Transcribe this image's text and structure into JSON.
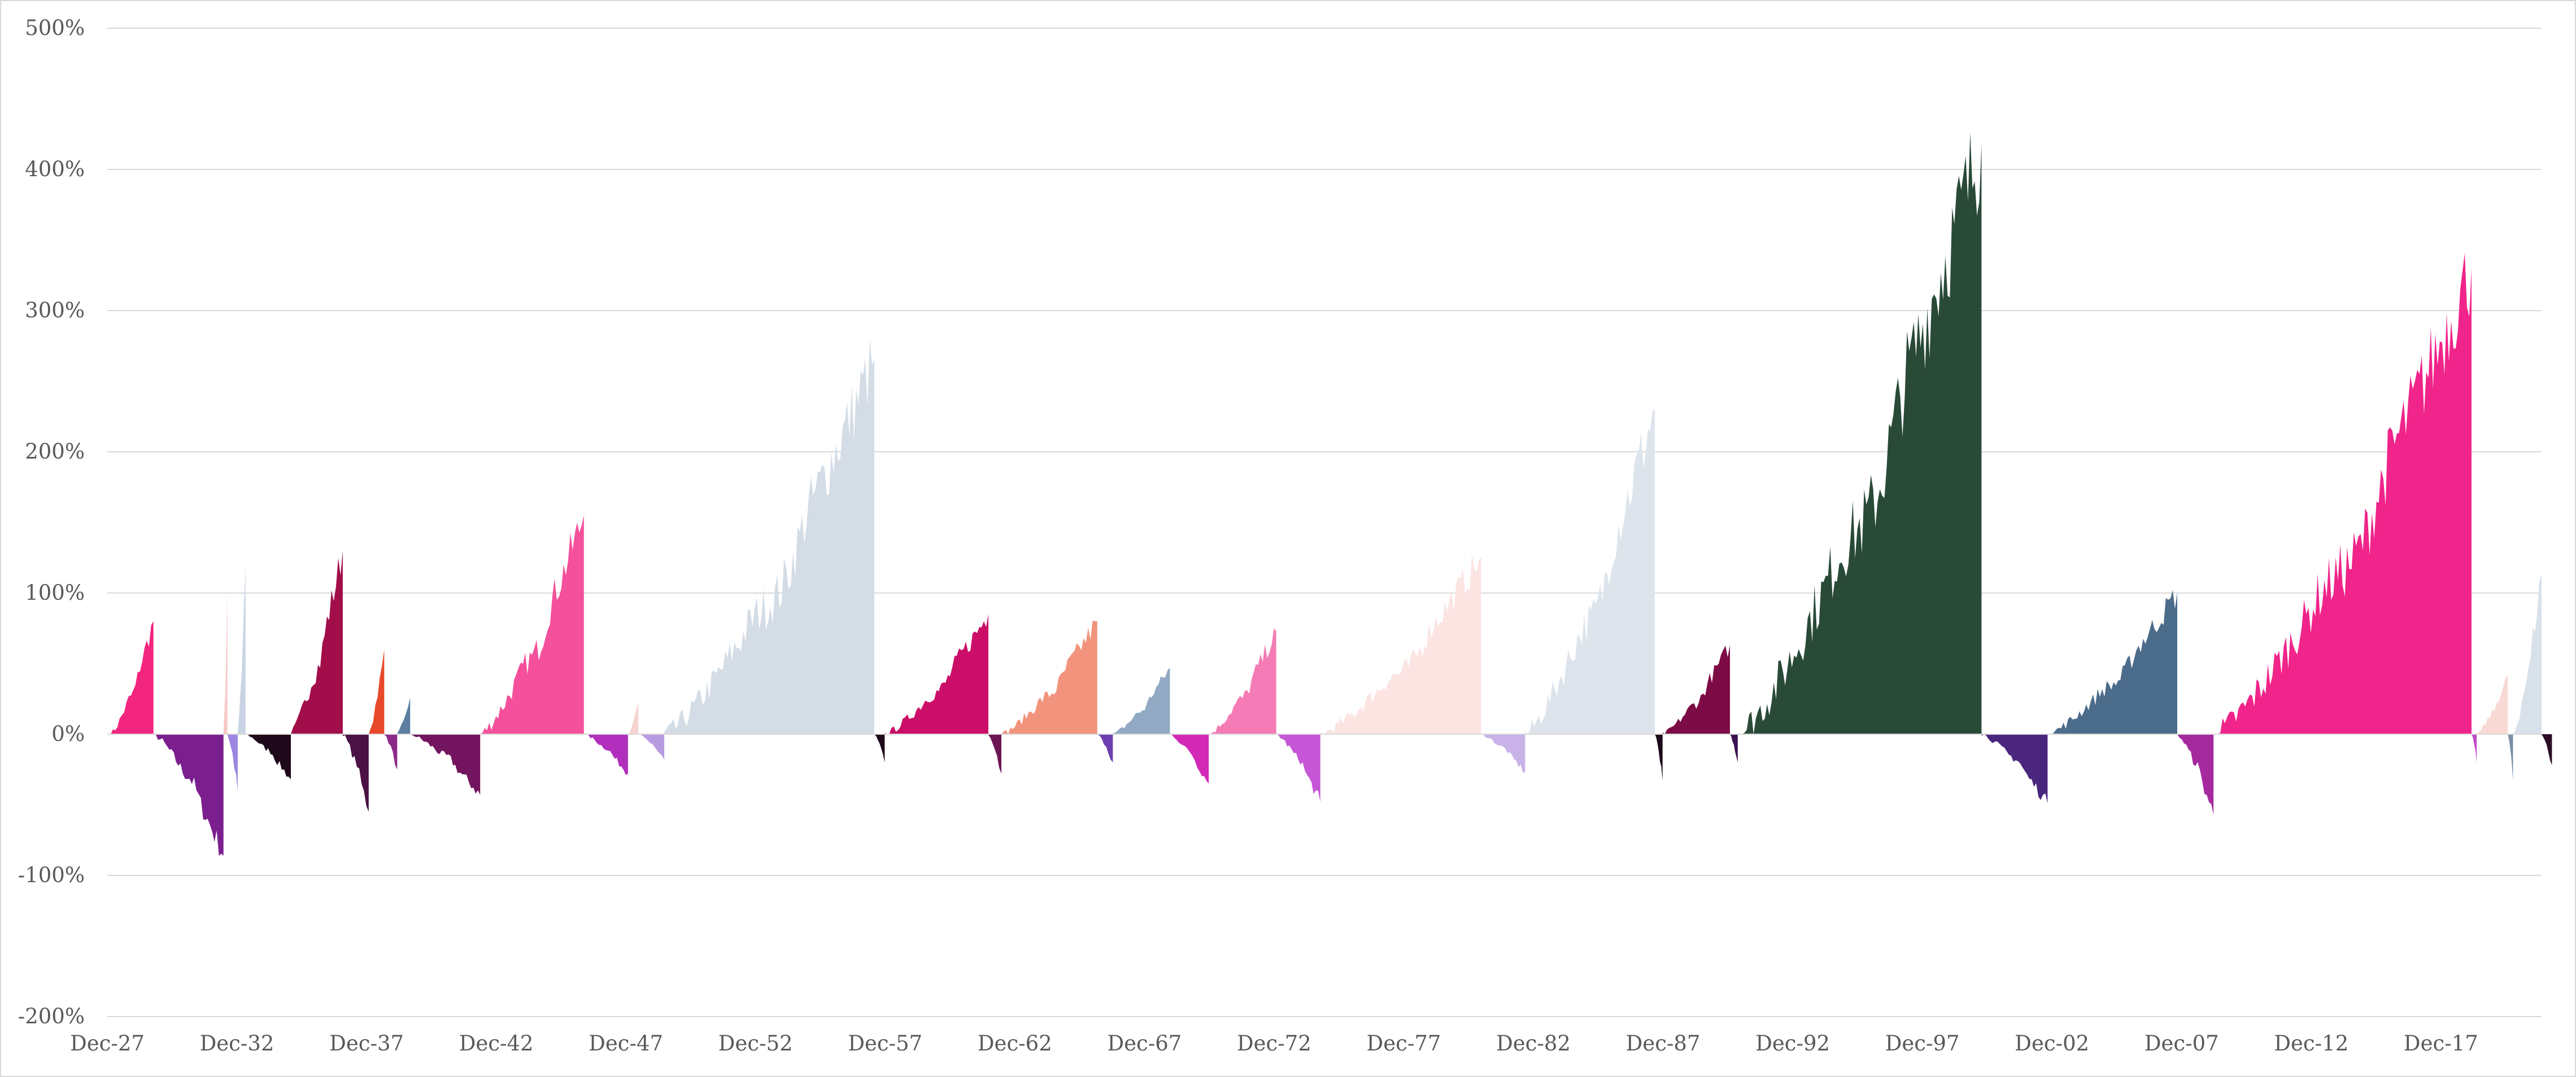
{
  "chart_data": {
    "type": "area",
    "title": "",
    "xlabel": "",
    "ylabel": "",
    "ylim": [
      -200,
      500
    ],
    "y_ticks": [
      {
        "value": 500,
        "label": "500%"
      },
      {
        "value": 400,
        "label": "400%"
      },
      {
        "value": 300,
        "label": "300%"
      },
      {
        "value": 200,
        "label": "200%"
      },
      {
        "value": 100,
        "label": "100%"
      },
      {
        "value": 0,
        "label": "0%"
      },
      {
        "value": -100,
        "label": "-100%"
      },
      {
        "value": -200,
        "label": "-200%"
      }
    ],
    "x_range": [
      1927.9,
      2021.8
    ],
    "x_ticks": [
      {
        "value": 1927.92,
        "label": "Dec-27"
      },
      {
        "value": 1932.92,
        "label": "Dec-32"
      },
      {
        "value": 1937.92,
        "label": "Dec-37"
      },
      {
        "value": 1942.92,
        "label": "Dec-42"
      },
      {
        "value": 1947.92,
        "label": "Dec-47"
      },
      {
        "value": 1952.92,
        "label": "Dec-52"
      },
      {
        "value": 1957.92,
        "label": "Dec-57"
      },
      {
        "value": 1962.92,
        "label": "Dec-62"
      },
      {
        "value": 1967.92,
        "label": "Dec-67"
      },
      {
        "value": 1972.92,
        "label": "Dec-72"
      },
      {
        "value": 1977.92,
        "label": "Dec-77"
      },
      {
        "value": 1982.92,
        "label": "Dec-82"
      },
      {
        "value": 1987.92,
        "label": "Dec-87"
      },
      {
        "value": 1992.92,
        "label": "Dec-92"
      },
      {
        "value": 1997.92,
        "label": "Dec-97"
      },
      {
        "value": 2002.92,
        "label": "Dec-02"
      },
      {
        "value": 2007.92,
        "label": "Dec-07"
      },
      {
        "value": 2012.92,
        "label": "Dec-12"
      },
      {
        "value": 2017.92,
        "label": "Dec-17"
      }
    ],
    "grid": true,
    "legend": "none",
    "episodes": [
      {
        "start": 1928.05,
        "end": 1929.7,
        "peak": 80,
        "color": "#f2257f"
      },
      {
        "start": 1929.7,
        "end": 1932.4,
        "peak": -86,
        "color": "#7b1f8e"
      },
      {
        "start": 1932.4,
        "end": 1932.55,
        "peak": 100,
        "color": "#f5c9c7"
      },
      {
        "start": 1932.55,
        "end": 1932.95,
        "peak": -40,
        "color": "#9b86e0"
      },
      {
        "start": 1932.95,
        "end": 1933.25,
        "peak": 118,
        "color": "#c8d4e4"
      },
      {
        "start": 1933.25,
        "end": 1935.0,
        "peak": -32,
        "color": "#1e0a1a"
      },
      {
        "start": 1935.0,
        "end": 1937.0,
        "peak": 130,
        "color": "#a10e4a"
      },
      {
        "start": 1937.0,
        "end": 1938.0,
        "peak": -55,
        "color": "#4a1245"
      },
      {
        "start": 1938.0,
        "end": 1938.6,
        "peak": 60,
        "color": "#e8492a"
      },
      {
        "start": 1938.6,
        "end": 1939.1,
        "peak": -25,
        "color": "#8c2a8a"
      },
      {
        "start": 1939.1,
        "end": 1939.6,
        "peak": 26,
        "color": "#5b7da0"
      },
      {
        "start": 1939.6,
        "end": 1942.3,
        "peak": -43,
        "color": "#73145f"
      },
      {
        "start": 1942.3,
        "end": 1946.3,
        "peak": 155,
        "color": "#f4509b"
      },
      {
        "start": 1946.3,
        "end": 1948.0,
        "peak": -28,
        "color": "#b12fbc"
      },
      {
        "start": 1948.0,
        "end": 1948.4,
        "peak": 22,
        "color": "#f6d3d1"
      },
      {
        "start": 1948.4,
        "end": 1949.4,
        "peak": -18,
        "color": "#b79be0"
      },
      {
        "start": 1949.4,
        "end": 1957.5,
        "peak": 265,
        "color": "#d4dde6"
      },
      {
        "start": 1957.5,
        "end": 1957.9,
        "peak": -20,
        "color": "#1e0a1a"
      },
      {
        "start": 1957.9,
        "end": 1961.9,
        "peak": 85,
        "color": "#cb0f68"
      },
      {
        "start": 1961.9,
        "end": 1962.4,
        "peak": -28,
        "color": "#6d1553"
      },
      {
        "start": 1962.4,
        "end": 1966.1,
        "peak": 80,
        "color": "#f2937d"
      },
      {
        "start": 1966.1,
        "end": 1966.7,
        "peak": -20,
        "color": "#6b3fb0"
      },
      {
        "start": 1966.7,
        "end": 1968.9,
        "peak": 47,
        "color": "#91a9c2"
      },
      {
        "start": 1968.9,
        "end": 1970.4,
        "peak": -35,
        "color": "#d22ab7"
      },
      {
        "start": 1970.4,
        "end": 1973.0,
        "peak": 73,
        "color": "#f47bb5"
      },
      {
        "start": 1973.0,
        "end": 1974.7,
        "peak": -48,
        "color": "#c556d5"
      },
      {
        "start": 1974.7,
        "end": 1980.9,
        "peak": 125,
        "color": "#fbe4e2"
      },
      {
        "start": 1980.9,
        "end": 1982.6,
        "peak": -27,
        "color": "#c8b2e8"
      },
      {
        "start": 1982.6,
        "end": 1987.6,
        "peak": 230,
        "color": "#dde4ec"
      },
      {
        "start": 1987.6,
        "end": 1987.9,
        "peak": -33,
        "color": "#1e0a1a"
      },
      {
        "start": 1987.9,
        "end": 1990.5,
        "peak": 63,
        "color": "#7d0b46"
      },
      {
        "start": 1990.5,
        "end": 1990.8,
        "peak": -20,
        "color": "#3d1150"
      },
      {
        "start": 1990.8,
        "end": 2000.2,
        "peak": 418,
        "color": "#2a4a38"
      },
      {
        "start": 2000.2,
        "end": 2002.75,
        "peak": -49,
        "color": "#4a267e"
      },
      {
        "start": 2002.75,
        "end": 2007.75,
        "peak": 100,
        "color": "#4c6c8b"
      },
      {
        "start": 2007.75,
        "end": 2009.15,
        "peak": -57,
        "color": "#a52a9e"
      },
      {
        "start": 2009.15,
        "end": 2019.1,
        "peak": 330,
        "color": "#f0248a"
      },
      {
        "start": 2019.1,
        "end": 2019.3,
        "peak": -20,
        "color": "#c04ac8"
      },
      {
        "start": 2019.3,
        "end": 2020.5,
        "peak": 42,
        "color": "#f9d9d5"
      },
      {
        "start": 2020.5,
        "end": 2020.7,
        "peak": -33,
        "color": "#7a8fa8"
      },
      {
        "start": 2020.7,
        "end": 2021.8,
        "peak": 113,
        "color": "#d8e0ea"
      },
      {
        "start": 2021.8,
        "end": 2022.2,
        "peak": -22,
        "color": "#2a0c24"
      }
    ]
  }
}
